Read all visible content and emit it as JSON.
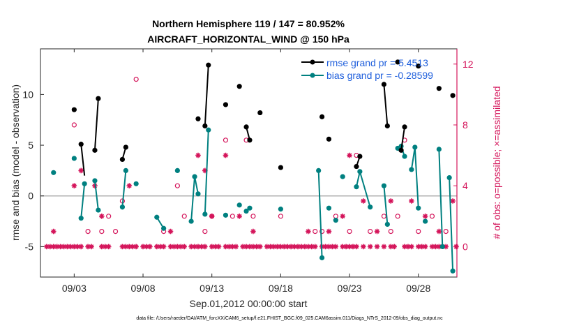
{
  "chart_data": {
    "type": "line",
    "title": "Northern Hemisphere 119 / 147 = 80.952%",
    "subtitle": "AIRCRAFT_HORIZONTAL_WIND @ 150 hPa",
    "xlabel": "Sep.01,2012 00:00:00 start",
    "ylabel": "rmse and bias (model - observation)",
    "y2label": "# of obs: o=possible; ×=assimilated",
    "footnote": "data file: /Users/raeder/DAI/ATM_forcXX/CAM6_setup/f.e21.FHIST_BGC.f09_025.CAM6assim.011/Diags_NTrS_2012-09/obs_diag_output.nc",
    "xlim": [
      0.55,
      30.8
    ],
    "ylim": [
      -8,
      14.5
    ],
    "y2lim": [
      -2.0,
      13.0
    ],
    "x_ticks": [
      3,
      8,
      13,
      18,
      23,
      28
    ],
    "x_tick_labels": [
      "09/03",
      "09/08",
      "09/13",
      "09/18",
      "09/23",
      "09/28"
    ],
    "y_ticks": [
      -5,
      0,
      5,
      10
    ],
    "y_tick_labels": [
      "-5",
      "0",
      "5",
      "10"
    ],
    "y2_ticks": [
      0,
      4,
      8,
      12
    ],
    "y2_tick_labels": [
      "0",
      "4",
      "8",
      "12"
    ],
    "zero_line": 0,
    "grid": false,
    "legend": {
      "position": "top-right",
      "entries": [
        {
          "label": "rmse grand pr = 5.4513",
          "color": "#000000",
          "marker": "o"
        },
        {
          "label": "bias grand pr = -0.28599",
          "color": "#008080",
          "marker": "o"
        }
      ]
    },
    "colors": {
      "rmse": "#000000",
      "bias": "#008080",
      "obs": "#d4145a",
      "zero_line": "#b0b0b0"
    },
    "series": [
      {
        "name": "rmse grand pr = 5.4513",
        "axis": "left",
        "color": "#000000",
        "points": [
          [
            3.0,
            8.5
          ],
          [
            3.5,
            5.1
          ],
          [
            4.5,
            4.5
          ],
          [
            4.75,
            9.6
          ],
          [
            6.5,
            3.6
          ],
          [
            6.75,
            4.8
          ],
          [
            12.0,
            7.6
          ],
          [
            12.5,
            6.9
          ],
          [
            12.75,
            12.9
          ],
          [
            14.0,
            9.0
          ],
          [
            15.0,
            10.8
          ],
          [
            15.5,
            6.8
          ],
          [
            15.75,
            5.5
          ],
          [
            16.5,
            8.2
          ],
          [
            18.0,
            2.8
          ],
          [
            21.0,
            7.8
          ],
          [
            21.5,
            5.6
          ],
          [
            23.5,
            2.9
          ],
          [
            23.75,
            3.9
          ],
          [
            25.5,
            11.0
          ],
          [
            25.75,
            6.9
          ],
          [
            26.5,
            13.2
          ],
          [
            26.75,
            4.5
          ],
          [
            27.0,
            6.8
          ],
          [
            28.0,
            12.8
          ],
          [
            29.5,
            10.6
          ],
          [
            30.5,
            9.9
          ]
        ],
        "segments": [
          [
            [
              3.5,
              5.1
            ],
            [
              3.75,
              2.0
            ]
          ],
          [
            [
              4.5,
              4.5
            ],
            [
              4.75,
              9.6
            ]
          ],
          [
            [
              6.5,
              3.6
            ],
            [
              6.75,
              4.8
            ]
          ],
          [
            [
              12.5,
              6.9
            ],
            [
              12.75,
              12.9
            ]
          ],
          [
            [
              15.5,
              6.8
            ],
            [
              15.75,
              5.5
            ]
          ],
          [
            [
              23.5,
              2.9
            ],
            [
              23.75,
              3.9
            ]
          ],
          [
            [
              25.5,
              11.0
            ],
            [
              25.75,
              6.9
            ]
          ],
          [
            [
              26.75,
              4.5
            ],
            [
              27.0,
              6.8
            ]
          ]
        ]
      },
      {
        "name": "bias grand pr = -0.28599",
        "axis": "left",
        "color": "#008080",
        "points": [
          [
            1.5,
            2.3
          ],
          [
            3.0,
            3.7
          ],
          [
            3.5,
            -2.2
          ],
          [
            3.75,
            1.2
          ],
          [
            4.5,
            1.5
          ],
          [
            4.75,
            -1.4
          ],
          [
            6.5,
            -1.1
          ],
          [
            6.75,
            2.5
          ],
          [
            7.5,
            1.2
          ],
          [
            9.0,
            -2.1
          ],
          [
            9.5,
            -3.2
          ],
          [
            10.5,
            2.5
          ],
          [
            11.5,
            -2.5
          ],
          [
            11.75,
            1.9
          ],
          [
            12.0,
            0.2
          ],
          [
            12.5,
            -1.8
          ],
          [
            12.75,
            6.5
          ],
          [
            14.0,
            -1.9
          ],
          [
            15.0,
            -0.9
          ],
          [
            15.5,
            -1.5
          ],
          [
            15.75,
            -1.2
          ],
          [
            18.0,
            -1.3
          ],
          [
            20.75,
            2.5
          ],
          [
            21.0,
            -6.1
          ],
          [
            21.5,
            -1.2
          ],
          [
            22.0,
            -2.4
          ],
          [
            22.5,
            1.9
          ],
          [
            23.5,
            0.9
          ],
          [
            23.75,
            2.4
          ],
          [
            24.5,
            -1.1
          ],
          [
            25.5,
            1.0
          ],
          [
            25.75,
            -2.8
          ],
          [
            26.5,
            4.7
          ],
          [
            26.75,
            4.9
          ],
          [
            27.0,
            3.9
          ],
          [
            27.5,
            2.6
          ],
          [
            27.75,
            4.8
          ],
          [
            28.0,
            -1.2
          ],
          [
            28.5,
            -2.5
          ],
          [
            29.5,
            4.6
          ],
          [
            29.75,
            -5.0
          ],
          [
            30.25,
            1.8
          ],
          [
            30.5,
            -7.4
          ]
        ],
        "segments": [
          [
            [
              3.5,
              -2.2
            ],
            [
              3.75,
              1.2
            ]
          ],
          [
            [
              4.5,
              1.5
            ],
            [
              4.75,
              -1.4
            ]
          ],
          [
            [
              6.5,
              -1.1
            ],
            [
              6.75,
              2.5
            ]
          ],
          [
            [
              9.0,
              -2.1
            ],
            [
              9.5,
              -3.2
            ]
          ],
          [
            [
              11.5,
              -2.5
            ],
            [
              11.75,
              1.9
            ],
            [
              12.0,
              0.2
            ]
          ],
          [
            [
              12.5,
              -1.8
            ],
            [
              12.75,
              6.5
            ]
          ],
          [
            [
              15.5,
              -1.5
            ],
            [
              15.75,
              -1.2
            ]
          ],
          [
            [
              20.75,
              2.5
            ],
            [
              21.0,
              -6.1
            ]
          ],
          [
            [
              23.5,
              0.9
            ],
            [
              23.75,
              2.4
            ],
            [
              24.5,
              -1.1
            ]
          ],
          [
            [
              25.5,
              1.0
            ],
            [
              25.75,
              -2.8
            ]
          ],
          [
            [
              26.5,
              4.7
            ],
            [
              26.75,
              4.9
            ],
            [
              27.0,
              3.9
            ]
          ],
          [
            [
              27.5,
              2.6
            ],
            [
              27.75,
              4.8
            ],
            [
              28.0,
              -1.2
            ]
          ],
          [
            [
              29.5,
              4.6
            ],
            [
              29.75,
              -5.0
            ]
          ],
          [
            [
              30.25,
              1.8
            ],
            [
              30.5,
              -7.4
            ]
          ]
        ]
      },
      {
        "name": "obs possible",
        "axis": "right",
        "color": "#d4145a",
        "marker": "o",
        "points": [
          [
            3.0,
            8.0
          ],
          [
            4.0,
            1.0
          ],
          [
            5.0,
            1.0
          ],
          [
            5.5,
            2.0
          ],
          [
            6.0,
            1.0
          ],
          [
            6.5,
            3.0
          ],
          [
            7.5,
            11.0
          ],
          [
            9.5,
            1.0
          ],
          [
            10.5,
            4.0
          ],
          [
            11.0,
            2.0
          ],
          [
            12.5,
            1.0
          ],
          [
            13.0,
            2.0
          ],
          [
            14.0,
            7.0
          ],
          [
            14.5,
            2.0
          ],
          [
            15.5,
            7.0
          ],
          [
            16.0,
            2.0
          ],
          [
            18.0,
            2.0
          ],
          [
            20.5,
            1.0
          ],
          [
            21.0,
            1.0
          ],
          [
            22.0,
            2.0
          ],
          [
            23.0,
            1.0
          ],
          [
            23.5,
            6.0
          ],
          [
            24.5,
            1.0
          ],
          [
            25.5,
            2.0
          ],
          [
            26.0,
            1.0
          ],
          [
            26.5,
            2.0
          ],
          [
            27.0,
            7.0
          ],
          [
            28.0,
            1.0
          ],
          [
            29.0,
            2.0
          ],
          [
            30.0,
            1.0
          ]
        ]
      },
      {
        "name": "obs assimilated",
        "axis": "right",
        "color": "#d4145a",
        "marker": "*",
        "points": [
          [
            1.0,
            0
          ],
          [
            1.25,
            0
          ],
          [
            1.5,
            0
          ],
          [
            1.75,
            0
          ],
          [
            2.0,
            0
          ],
          [
            2.25,
            0
          ],
          [
            2.5,
            0
          ],
          [
            2.75,
            0
          ],
          [
            3.0,
            0
          ],
          [
            3.25,
            0
          ],
          [
            3.5,
            0
          ],
          [
            4.0,
            0
          ],
          [
            4.25,
            0
          ],
          [
            5.0,
            0
          ],
          [
            5.25,
            0
          ],
          [
            5.5,
            0
          ],
          [
            6.5,
            0
          ],
          [
            6.75,
            0
          ],
          [
            7.0,
            0
          ],
          [
            7.25,
            0
          ],
          [
            7.5,
            0
          ],
          [
            8.0,
            0
          ],
          [
            8.25,
            0
          ],
          [
            8.5,
            0
          ],
          [
            9.0,
            0
          ],
          [
            9.25,
            0
          ],
          [
            9.5,
            0
          ],
          [
            10.0,
            0
          ],
          [
            10.25,
            0
          ],
          [
            10.5,
            0
          ],
          [
            10.75,
            0
          ],
          [
            11.0,
            0
          ],
          [
            11.5,
            0
          ],
          [
            11.75,
            0
          ],
          [
            12.0,
            0
          ],
          [
            12.25,
            0
          ],
          [
            12.5,
            0
          ],
          [
            13.0,
            0
          ],
          [
            13.25,
            0
          ],
          [
            13.5,
            0
          ],
          [
            14.0,
            0
          ],
          [
            14.25,
            0
          ],
          [
            14.5,
            0
          ],
          [
            14.75,
            0
          ],
          [
            15.25,
            0
          ],
          [
            15.5,
            0
          ],
          [
            15.75,
            0
          ],
          [
            16.0,
            0
          ],
          [
            16.25,
            0
          ],
          [
            16.5,
            0
          ],
          [
            17.0,
            0
          ],
          [
            17.25,
            0
          ],
          [
            17.5,
            0
          ],
          [
            17.75,
            0
          ],
          [
            18.0,
            0
          ],
          [
            18.25,
            0
          ],
          [
            18.5,
            0
          ],
          [
            18.75,
            0
          ],
          [
            19.0,
            0
          ],
          [
            19.25,
            0
          ],
          [
            19.5,
            0
          ],
          [
            19.75,
            0
          ],
          [
            20.0,
            0
          ],
          [
            20.25,
            0
          ],
          [
            20.5,
            0
          ],
          [
            21.0,
            0
          ],
          [
            21.25,
            0
          ],
          [
            21.5,
            0
          ],
          [
            21.75,
            0
          ],
          [
            22.0,
            0
          ],
          [
            22.5,
            0
          ],
          [
            22.75,
            0
          ],
          [
            23.0,
            0
          ],
          [
            23.25,
            0
          ],
          [
            23.5,
            0
          ],
          [
            24.0,
            0
          ],
          [
            24.5,
            0
          ],
          [
            25.0,
            0
          ],
          [
            25.5,
            0
          ],
          [
            26.0,
            0
          ],
          [
            26.25,
            0
          ],
          [
            27.0,
            0
          ],
          [
            27.25,
            0
          ],
          [
            27.5,
            0
          ],
          [
            28.0,
            0
          ],
          [
            28.25,
            0
          ],
          [
            28.5,
            0
          ],
          [
            29.0,
            0
          ],
          [
            29.25,
            0
          ],
          [
            29.5,
            0
          ],
          [
            30.0,
            0
          ],
          [
            30.75,
            0
          ],
          [
            1.5,
            1.0
          ],
          [
            3.0,
            4.0
          ],
          [
            3.5,
            5.0
          ],
          [
            4.5,
            4.0
          ],
          [
            5.0,
            2.0
          ],
          [
            7.0,
            4.0
          ],
          [
            10.0,
            1.0
          ],
          [
            12.0,
            6.0
          ],
          [
            12.5,
            5.0
          ],
          [
            13.0,
            2.0
          ],
          [
            14.0,
            6.0
          ],
          [
            15.0,
            2.0
          ],
          [
            16.0,
            1.0
          ],
          [
            20.0,
            1.0
          ],
          [
            21.5,
            1.0
          ],
          [
            22.5,
            2.0
          ],
          [
            23.0,
            6.0
          ],
          [
            24.0,
            3.0
          ],
          [
            25.0,
            1.0
          ],
          [
            26.0,
            3.0
          ],
          [
            27.5,
            3.0
          ],
          [
            28.5,
            2.0
          ],
          [
            29.5,
            1.0
          ],
          [
            30.5,
            3.0
          ]
        ]
      }
    ]
  }
}
